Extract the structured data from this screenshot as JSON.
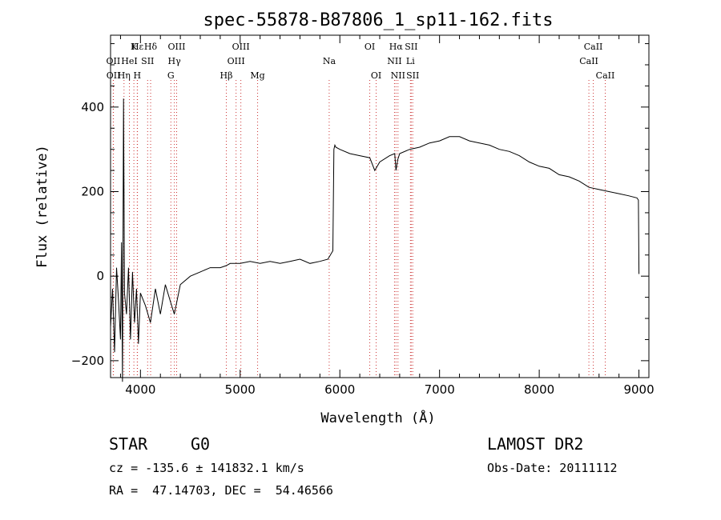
{
  "chart_data": {
    "type": "line",
    "title": "spec-55878-B87806_1_sp11-162.fits",
    "xlabel": "Wavelength (Å)",
    "ylabel": "Flux (relative)",
    "xlim": [
      3700,
      9100
    ],
    "ylim": [
      -240,
      570
    ],
    "xticks": [
      4000,
      5000,
      6000,
      7000,
      8000,
      9000
    ],
    "yticks": [
      -200,
      0,
      200,
      400
    ],
    "grid": false,
    "series": [
      {
        "color": "#000000",
        "x": [
          3700,
          3720,
          3740,
          3760,
          3780,
          3800,
          3810,
          3820,
          3830,
          3840,
          3860,
          3880,
          3900,
          3920,
          3940,
          3960,
          3980,
          4000,
          4050,
          4100,
          4150,
          4200,
          4250,
          4300,
          4340,
          4400,
          4500,
          4600,
          4700,
          4800,
          4861,
          4900,
          5000,
          5100,
          5200,
          5300,
          5400,
          5500,
          5600,
          5700,
          5800,
          5880,
          5930,
          5940,
          5950,
          5960,
          6000,
          6100,
          6200,
          6300,
          6350,
          6400,
          6500,
          6550,
          6563,
          6580,
          6600,
          6700,
          6800,
          6900,
          7000,
          7100,
          7200,
          7300,
          7400,
          7500,
          7600,
          7700,
          7800,
          7900,
          8000,
          8100,
          8200,
          8300,
          8400,
          8500,
          8600,
          8700,
          8800,
          8900,
          8980,
          8995,
          9000
        ],
        "y": [
          -120,
          -30,
          -180,
          20,
          -60,
          -150,
          80,
          -250,
          420,
          -40,
          -90,
          20,
          -150,
          10,
          -110,
          -30,
          -160,
          -40,
          -70,
          -110,
          -30,
          -90,
          -20,
          -60,
          -90,
          -20,
          0,
          10,
          20,
          20,
          25,
          30,
          30,
          35,
          30,
          35,
          30,
          35,
          40,
          30,
          35,
          40,
          60,
          300,
          310,
          305,
          300,
          290,
          285,
          280,
          250,
          270,
          285,
          290,
          250,
          275,
          290,
          300,
          305,
          315,
          320,
          330,
          330,
          320,
          315,
          310,
          300,
          295,
          285,
          270,
          260,
          255,
          240,
          235,
          225,
          210,
          205,
          200,
          195,
          190,
          185,
          180,
          5
        ]
      }
    ],
    "line_markers": [
      {
        "label": "Hε",
        "x": 3970,
        "row": 1
      },
      {
        "label": "K",
        "x": 3934,
        "row": 1
      },
      {
        "label": "Hδ",
        "x": 4102,
        "row": 1
      },
      {
        "label": "OIII",
        "x": 4363,
        "row": 1
      },
      {
        "label": "OIII",
        "x": 5007,
        "row": 1
      },
      {
        "label": "OI",
        "x": 6300,
        "row": 1
      },
      {
        "label": "Hα",
        "x": 6563,
        "row": 1
      },
      {
        "label": "SII",
        "x": 6716,
        "row": 1
      },
      {
        "label": "CaII",
        "x": 8542,
        "row": 1
      },
      {
        "label": "OII",
        "x": 3727,
        "row": 2
      },
      {
        "label": "HeI",
        "x": 3889,
        "row": 2
      },
      {
        "label": "SII",
        "x": 4072,
        "row": 2
      },
      {
        "label": "Hγ",
        "x": 4340,
        "row": 2
      },
      {
        "label": "OIII",
        "x": 4959,
        "row": 2
      },
      {
        "label": "Na",
        "x": 5893,
        "row": 2
      },
      {
        "label": "NII",
        "x": 6548,
        "row": 2
      },
      {
        "label": "Li",
        "x": 6708,
        "row": 2
      },
      {
        "label": "CaII",
        "x": 8498,
        "row": 2
      },
      {
        "label": "OII",
        "x": 3729,
        "row": 3
      },
      {
        "label": "Hη",
        "x": 3835,
        "row": 3
      },
      {
        "label": "H",
        "x": 3968,
        "row": 3
      },
      {
        "label": "G",
        "x": 4305,
        "row": 3
      },
      {
        "label": "Hβ",
        "x": 4861,
        "row": 3
      },
      {
        "label": "Mg",
        "x": 5175,
        "row": 3
      },
      {
        "label": "OI",
        "x": 6364,
        "row": 3
      },
      {
        "label": "NII",
        "x": 6583,
        "row": 3
      },
      {
        "label": "SII",
        "x": 6731,
        "row": 3
      },
      {
        "label": "CaII",
        "x": 8662,
        "row": 3
      }
    ]
  },
  "footer": {
    "object_class": "STAR",
    "subclass": "G0",
    "survey": "LAMOST DR2",
    "cz_line": "cz = -135.6 ± 141832.1 km/s",
    "obs_date": "Obs-Date: 20111112",
    "radec": "RA =  47.14703, DEC =  54.46566"
  }
}
